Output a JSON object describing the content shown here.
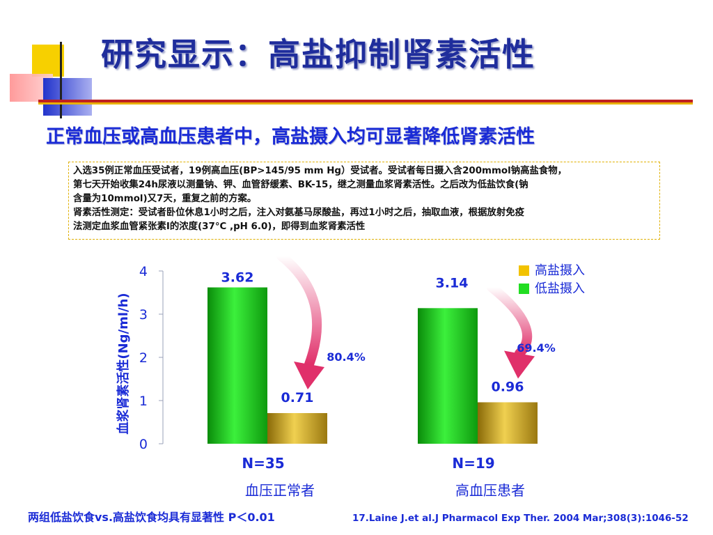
{
  "title": "研究显示：高盐抑制肾素活性",
  "subtitle": "正常血压或高血压患者中，高盐摄入均可显著降低肾素活性",
  "notes": {
    "line1": "入选35例正常血压受试者，19例高血压(BP>145/95 mm Hg）受试者。受试者每日摄入含200mmol钠高盐食物，",
    "line2": "第七天开始收集24h尿液以测量钠、钾、血管舒缓素、BK-15，继之测量血浆肾素活性。之后改为低盐饮食(钠",
    "line3": "含量为10mmol)又7天，重复之前的方案。",
    "line4": "肾素活性测定：受试者卧位休息1小时之后，注入对氨基马尿酸盐，再过1小时之后，抽取血液，根据放射免疫",
    "line5": "法测定血浆血管紧张素Ⅰ的浓度(37°C ,pH 6.0)，即得到血浆肾素活性"
  },
  "chart_data": {
    "type": "bar",
    "ylabel": "血浆肾素活性(Ng/ml/h)",
    "ylim": [
      0,
      4
    ],
    "yticks": [
      "0",
      "1",
      "2",
      "3",
      "4"
    ],
    "grid": false,
    "legend_position": "top-right",
    "legend": [
      {
        "label": "高盐摄入",
        "color": "#f2c200"
      },
      {
        "label": "低盐摄入",
        "color": "#22dd22"
      }
    ],
    "groups": [
      {
        "n_label": "N=35",
        "group_label": "血压正常者",
        "bars": [
          {
            "value": 3.62,
            "label": "3.62",
            "color": "#1ec81e"
          },
          {
            "value": 0.71,
            "label": "0.71",
            "color": "#c9a21c"
          }
        ],
        "reduction": "80.4%"
      },
      {
        "n_label": "N=19",
        "group_label": "高血压患者",
        "bars": [
          {
            "value": 3.14,
            "label": "3.14",
            "color": "#1ec81e"
          },
          {
            "value": 0.96,
            "label": "0.96",
            "color": "#c9a21c"
          }
        ],
        "reduction": "69.4%"
      }
    ]
  },
  "footnote_left": "两组低盐饮食vs.高盐饮食均具有显著性  P＜0.01",
  "footnote_right": "17.Laine J.et al.J Pharmacol Exp Ther. 2004 Mar;308(3):1046-52",
  "colors": {
    "title": "#1f2d9c",
    "text_blue": "#1a2bd6",
    "arrow": "#e0306a"
  }
}
